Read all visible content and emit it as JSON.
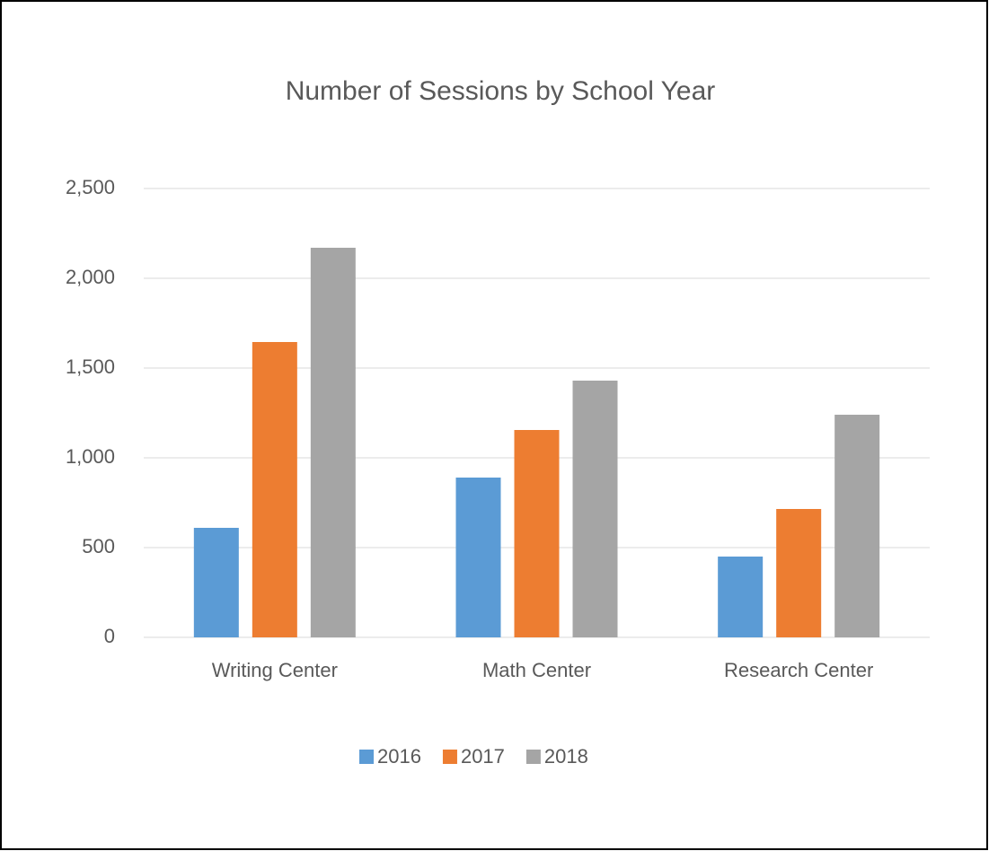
{
  "chart_data": {
    "type": "bar",
    "title": "Number of Sessions by School Year",
    "categories": [
      "Writing Center",
      "Math Center",
      "Research Center"
    ],
    "series": [
      {
        "name": "2016",
        "color": "#5b9bd5",
        "values": [
          610,
          890,
          450
        ]
      },
      {
        "name": "2017",
        "color": "#ed7d31",
        "values": [
          1645,
          1155,
          715
        ]
      },
      {
        "name": "2018",
        "color": "#a5a5a5",
        "values": [
          2170,
          1430,
          1240
        ]
      }
    ],
    "ylim": [
      0,
      2500
    ],
    "yticks": [
      0,
      500,
      {
        "value": 1000,
        "label": "1,000"
      },
      {
        "value": 1500,
        "label": "1,500"
      },
      {
        "value": 2000,
        "label": "2,000"
      },
      {
        "value": 2500,
        "label": "2,500"
      }
    ],
    "grid": true,
    "legend": "bottom"
  }
}
